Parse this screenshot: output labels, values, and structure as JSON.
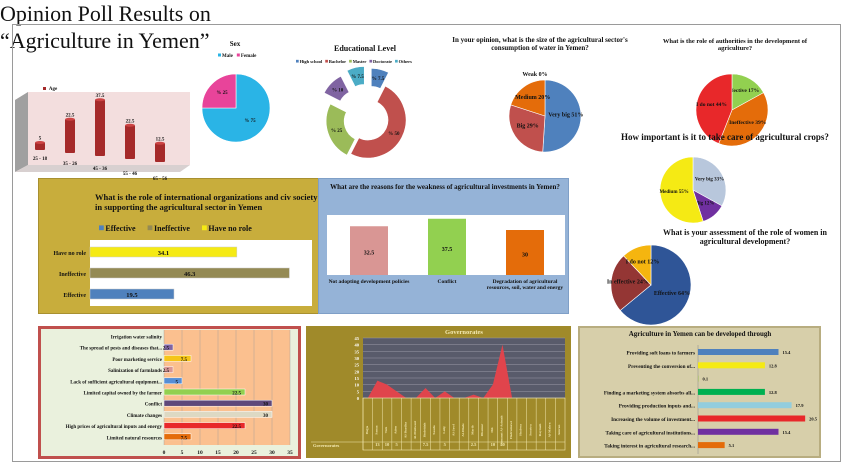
{
  "page_title": [
    "Opinion Poll Results on",
    "“Agriculture in Yemen”"
  ],
  "chart_data": [
    {
      "id": "age",
      "type": "bar",
      "title": "",
      "legend": [
        "Age"
      ],
      "categories": [
        "25 - 18",
        "35 - 26",
        "45 - 36",
        "55 - 46",
        "65 - 56"
      ],
      "values": [
        5,
        22.5,
        37.5,
        22.5,
        12.5
      ],
      "labels": [
        "5",
        "22.5",
        "37.5",
        "22.5",
        "12.5"
      ],
      "color": "#a52a2a"
    },
    {
      "id": "sex",
      "type": "pie",
      "title": "Sex",
      "legend": [
        "Male",
        "Female"
      ],
      "values": [
        75,
        25
      ],
      "labels": [
        "% 75",
        "% 25"
      ],
      "colors": [
        "#2ab4e6",
        "#e8449a"
      ]
    },
    {
      "id": "education",
      "type": "pie",
      "title": "Educational Level",
      "legend": [
        "High school",
        "Bachelor",
        "Master",
        "Doctorate",
        "Others"
      ],
      "values": [
        7.5,
        50,
        25,
        10,
        7.5
      ],
      "labels": [
        "% 7.5",
        "% 50",
        "% 25",
        "% 10",
        "% 7.5"
      ],
      "colors": [
        "#4f81bd",
        "#c0504d",
        "#9bbb59",
        "#8064a2",
        "#4bacc6"
      ]
    },
    {
      "id": "water",
      "type": "pie",
      "title": "In your opinion, what is the size of the agricultural sector's consumption of water in Yemen?",
      "categories": [
        "Very big",
        "Big",
        "Medium",
        "Weak"
      ],
      "values": [
        51,
        29,
        20,
        0
      ],
      "labels": [
        "Very big 51%",
        "Big 29%",
        "Medium 20%",
        "Weak 0%"
      ],
      "colors": [
        "#4f81bd",
        "#c0504d",
        "#e46c0a",
        "#9bbb59"
      ]
    },
    {
      "id": "authorities",
      "type": "pie",
      "title": "What is the role of authorities in the development of agriculture?",
      "categories": [
        "Effective",
        "Ineffective",
        "I do not"
      ],
      "values": [
        17,
        39,
        44
      ],
      "labels": [
        "Effective 17%",
        "Ineffective 39%",
        "I do not 44%"
      ],
      "colors": [
        "#92d050",
        "#e46c0a",
        "#e8282a"
      ]
    },
    {
      "id": "crops",
      "type": "pie",
      "title": "How important is it to take care of agricultural crops?",
      "categories": [
        "Very big",
        "Big",
        "Medium"
      ],
      "values": [
        33,
        12,
        55
      ],
      "labels": [
        "Very big 33%",
        "Big 12%",
        "Medium 55%"
      ],
      "colors": [
        "#b8c7dc",
        "#7030a0",
        "#f5ea14"
      ]
    },
    {
      "id": "women",
      "type": "pie",
      "title": "What is your assessment of the role of women in agricultural development?",
      "categories": [
        "Effective",
        "Ineffective",
        "I do not"
      ],
      "values": [
        64,
        24,
        12
      ],
      "labels": [
        "Effective 64%",
        "In effective 24%",
        "I do not 12%"
      ],
      "colors": [
        "#2f5597",
        "#943634",
        "#f5b50f"
      ]
    },
    {
      "id": "intl",
      "type": "bar",
      "orientation": "horizontal",
      "title": "What is the role of international organizations and civ society in supporting the agricultural sector in Yemen",
      "legend": [
        "Effective",
        "Ineffective",
        "Have no role"
      ],
      "categories": [
        "Have no role",
        "Ineffective",
        "Effective"
      ],
      "values": [
        34.1,
        46.3,
        19.5
      ],
      "labels": [
        "34.1",
        "46.3",
        "19.5"
      ],
      "colors": [
        "#f5ea14",
        "#948a54",
        "#4f81bd"
      ],
      "xlim": [
        0,
        50
      ]
    },
    {
      "id": "reasons",
      "type": "bar",
      "title": "What are the reasons for the weakness of agricultural investments in Yemen?",
      "categories": [
        "Not adopting development policies",
        "Conflict",
        "Degradation of agricultural resources, soil, water and energy"
      ],
      "values": [
        32.5,
        37.5,
        30
      ],
      "labels": [
        "32.5",
        "37.5",
        "30"
      ],
      "colors": [
        "#d99694",
        "#92d050",
        "#e46c0a"
      ],
      "ylim": [
        0,
        40
      ]
    },
    {
      "id": "problems",
      "type": "bar",
      "orientation": "horizontal",
      "title": "",
      "categories": [
        "Irrigation water salinity",
        "The spread of pests and diseases that...",
        "Poor marketing service",
        "Salinization of farmlands",
        "Lack of sufficient agricultural equipment...",
        "Limited capital owned by the farmer",
        "Conflict",
        "Climate changes",
        "High prices of agricultural inputs and energy",
        "Limited natural resources"
      ],
      "values": [
        0,
        2.5,
        7.5,
        2.5,
        5,
        22.5,
        30,
        30,
        22.5,
        7.5
      ],
      "labels": [
        "",
        "2.5",
        "7.5",
        "2.5",
        "5",
        "22.5",
        "30",
        "30",
        "22.5",
        "7.5"
      ],
      "colors": [
        "#4f81bd",
        "#8064a2",
        "#f5c518",
        "#d99694",
        "#558ed5",
        "#92d050",
        "#5f497a",
        "#ddd9c3",
        "#e8282a",
        "#e46c0a"
      ],
      "xlim": [
        0,
        35
      ],
      "xticks": [
        "0",
        "5",
        "10",
        "15",
        "20",
        "25",
        "30",
        "35"
      ]
    },
    {
      "id": "governorates",
      "type": "area",
      "title": "Governorates",
      "legend": [
        "Governorates"
      ],
      "categories": [
        "Hajja",
        "Sanaa",
        "Taiz",
        "Aden",
        "Al-Baydha",
        "Al-Mahweet",
        "Hodeidah",
        "Saada",
        "Lahj",
        "Al-Jawf",
        "Al-Dhale",
        "Marib",
        "Dhamar",
        "Ibb",
        "Amanat Al-Asimah",
        "Hadramawt",
        "Shabwa",
        "Socotra",
        "Raymah",
        "Al-Mahra",
        "Amran"
      ],
      "values": [
        0,
        13,
        10,
        5,
        0,
        0,
        7.5,
        0,
        5,
        0,
        0,
        2.5,
        0,
        10,
        40,
        0,
        0,
        0,
        0,
        0,
        0
      ],
      "labels": [
        "",
        "13",
        "10",
        "5",
        "",
        "",
        "7.5",
        "",
        "5",
        "",
        "",
        "2.5",
        "",
        "10",
        "40",
        "",
        "",
        "",
        "",
        "",
        ""
      ],
      "color": "#e0444c",
      "ylim": [
        0,
        45
      ],
      "yticks": [
        "0",
        "5",
        "10",
        "15",
        "20",
        "25",
        "30",
        "35",
        "40",
        "45"
      ]
    },
    {
      "id": "develop",
      "type": "bar",
      "orientation": "horizontal",
      "title": "Agriculture in Yemen can be developed through",
      "categories": [
        "Providing soft loans to farmers",
        "Preventing the conversion of...",
        "",
        "Finding a marketing system absorbs all...",
        "Providing production inputs and...",
        "Increasing the volume of investment...",
        "Taking care of agricultural institutions...",
        "Taking interest in agricultural research..."
      ],
      "values": [
        15.4,
        12.8,
        0.1,
        12.8,
        17.9,
        20.5,
        15.4,
        5.1
      ],
      "labels": [
        "15.4",
        "12.8",
        "0.1",
        "12.8",
        "17.9",
        "20.5",
        "15.4",
        "5.1"
      ],
      "colors": [
        "#4f81bd",
        "#f5ea14",
        "#9bbb59",
        "#00b050",
        "#93cddd",
        "#e8282a",
        "#7030a0",
        "#e46c0a"
      ],
      "xlim": [
        0,
        22
      ]
    }
  ]
}
